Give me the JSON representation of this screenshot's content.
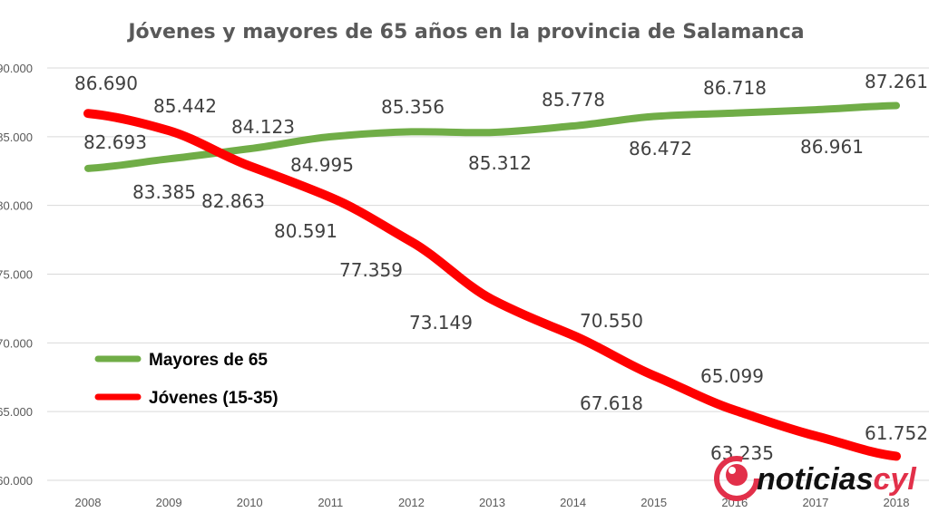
{
  "chart_data": {
    "type": "line",
    "title": "Jóvenes y mayores de 65 años en la provincia de Salamanca",
    "categories": [
      "2008",
      "2009",
      "2010",
      "2011",
      "2012",
      "2013",
      "2014",
      "2015",
      "2016",
      "2017",
      "2018"
    ],
    "y_ticks": [
      "60.000",
      "65.000",
      "70.000",
      "75.000",
      "80.000",
      "85.000",
      "90.000"
    ],
    "ylim": [
      60000,
      90000
    ],
    "grid": "horizontal",
    "legend_position": "left-middle",
    "series": [
      {
        "name": "Mayores de 65",
        "color": "#70ad47",
        "values": [
          82693,
          83385,
          84123,
          84995,
          85356,
          85312,
          85778,
          86472,
          86718,
          86961,
          87261
        ],
        "labels": [
          "82.693",
          "83.385",
          "84.123",
          "84.995",
          "85.356",
          "85.312",
          "85.778",
          "86.472",
          "86.718",
          "86.961",
          "87.261"
        ]
      },
      {
        "name": "Jóvenes (15-35)",
        "color": "#ff0000",
        "values": [
          86690,
          85442,
          82863,
          80591,
          77359,
          73149,
          70550,
          67618,
          65099,
          63235,
          61752
        ],
        "labels": [
          "86.690",
          "85.442",
          "82.863",
          "80.591",
          "77.359",
          "73.149",
          "70.550",
          "67.618",
          "65.099",
          "63.235",
          "61.752"
        ]
      }
    ]
  },
  "watermark": {
    "text": "noticiascyl",
    "part1": "noticias",
    "part2": "cyl",
    "color": "#e2304a"
  }
}
